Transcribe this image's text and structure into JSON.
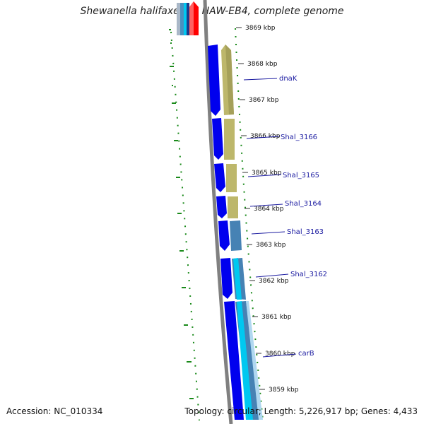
{
  "title": "Shewanella halifaxensis HAW-EB4, complete genome",
  "accession_text": "Accession: NC_010334",
  "summary_text": "Topology: circular; Length: 5,226,917 bp; Genes: 4,433",
  "colors": {
    "backbone": "#808080",
    "cds_forward": "#0000ee",
    "cds_reverse_tan": "#bdb76b",
    "cds_reverse_steel": "#4682b4",
    "cds_reverse_cyan": "#00c8f0",
    "gc_skew": "#1a8a1a",
    "label_line": "#1a1aa0"
  },
  "tick_labels": [
    "3869 kbp",
    "3868 kbp",
    "3867 kbp",
    "3866 kbp",
    "3865 kbp",
    "3864 kbp",
    "3863 kbp",
    "3862 kbp",
    "3861 kbp",
    "3860 kbp",
    "3859 kbp"
  ],
  "gene_labels": [
    "dnaK",
    "Shal_3166",
    "Shal_3165",
    "Shal_3164",
    "Shal_3163",
    "Shal_3162",
    "carB"
  ]
}
